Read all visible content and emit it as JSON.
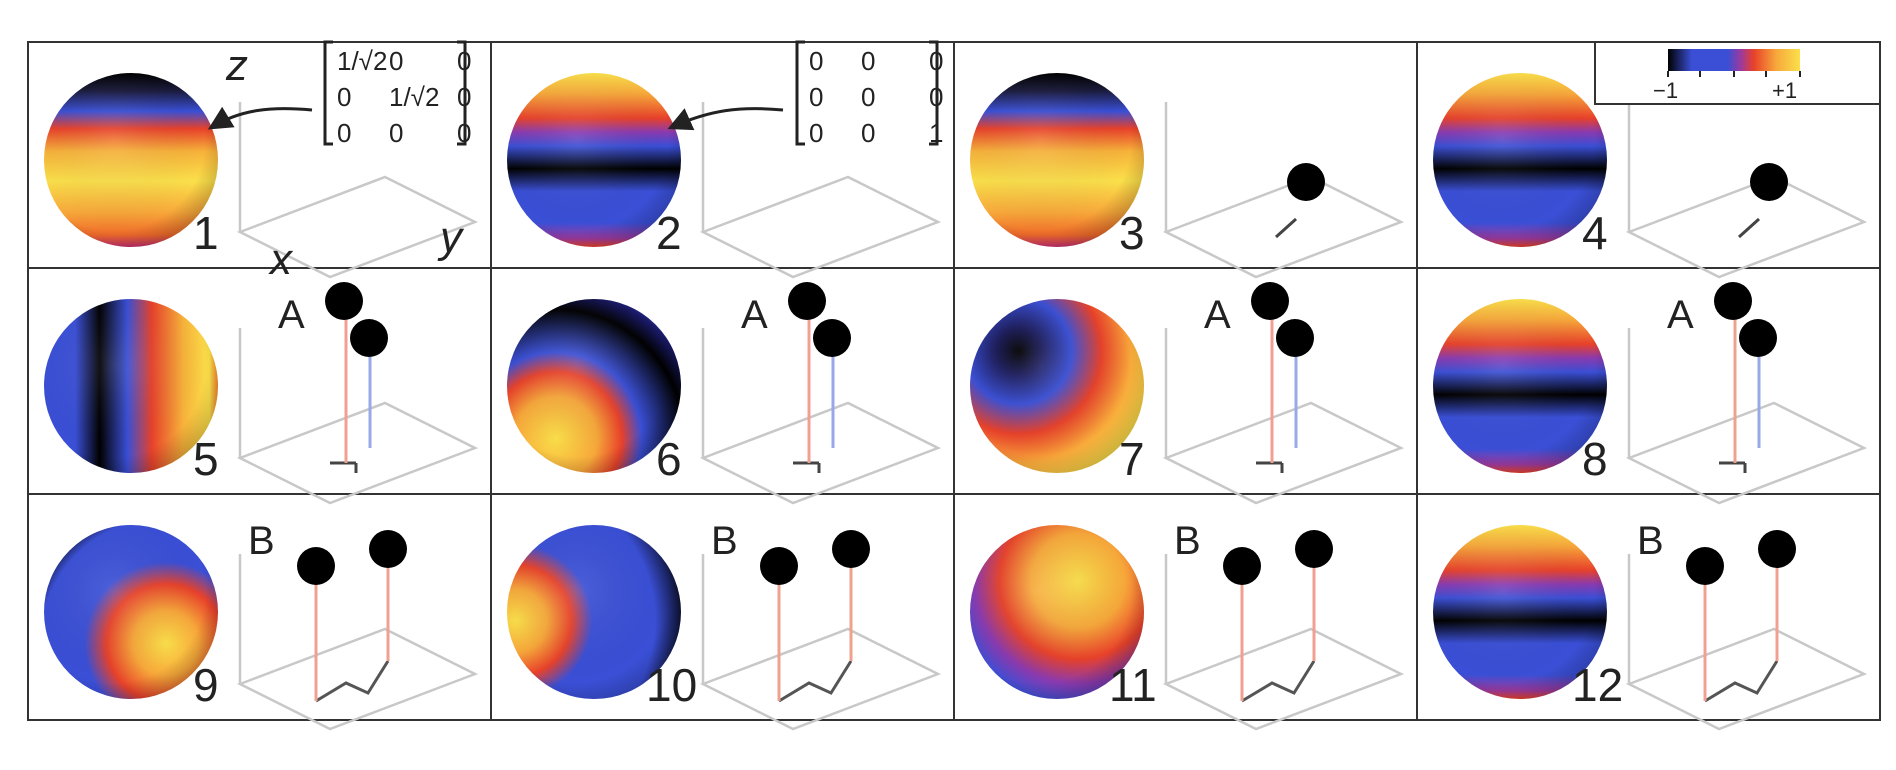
{
  "figure": {
    "colorbar": {
      "min_label": "−1",
      "max_label": "+1"
    },
    "axes": {
      "x": "x",
      "y": "y",
      "z": "z"
    },
    "matrices": [
      {
        "panel": 1,
        "rows": [
          [
            "1/√2",
            "0",
            "0"
          ],
          [
            "0",
            "1/√2",
            "0"
          ],
          [
            "0",
            "0",
            "0"
          ]
        ]
      },
      {
        "panel": 2,
        "rows": [
          [
            "0",
            "0",
            "0"
          ],
          [
            "0",
            "0",
            "0"
          ],
          [
            "0",
            "0",
            "1"
          ]
        ]
      }
    ],
    "panels": [
      {
        "label": "1",
        "sphere": "band-light",
        "tag": ""
      },
      {
        "label": "2",
        "sphere": "band-dark",
        "tag": ""
      },
      {
        "label": "3",
        "sphere": "band-light",
        "tag": ""
      },
      {
        "label": "4",
        "sphere": "band-dark",
        "tag": ""
      },
      {
        "label": "5",
        "sphere": "vertical",
        "tag": "A"
      },
      {
        "label": "6",
        "sphere": "tilted-hot",
        "tag": "A"
      },
      {
        "label": "7",
        "sphere": "dark-spot",
        "tag": "A"
      },
      {
        "label": "8",
        "sphere": "band-dark",
        "tag": "A"
      },
      {
        "label": "9",
        "sphere": "tilted-hot-low",
        "tag": "B"
      },
      {
        "label": "10",
        "sphere": "side-hot",
        "tag": "B"
      },
      {
        "label": "11",
        "sphere": "hot-cap",
        "tag": "B"
      },
      {
        "label": "12",
        "sphere": "band-dark",
        "tag": "B"
      }
    ],
    "colors": {
      "black": "#000000",
      "blue": "#3a4fd6",
      "red": "#e8412a",
      "orange": "#f4882a",
      "yellow": "#fbe04a",
      "grid": "#c8c8c8",
      "stick_red": "#f0a090",
      "stick_blue": "#9aa8e8"
    }
  }
}
